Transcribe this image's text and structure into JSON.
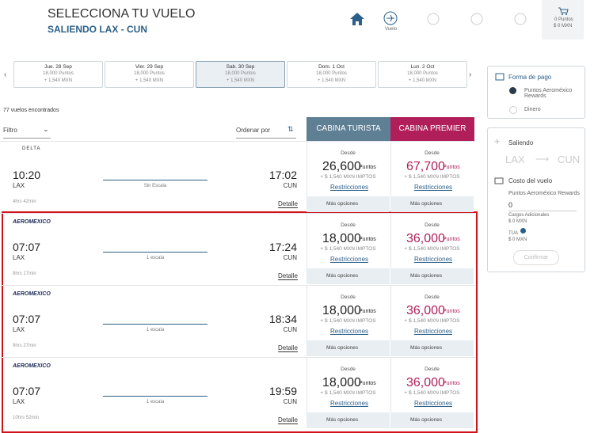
{
  "header": {
    "title": "SELECCIONA TU VUELO",
    "subtitle": "SALIENDO LAX - CUN"
  },
  "nav": {
    "flight_label": "Vuelo"
  },
  "cart": {
    "points": "0 Puntos",
    "amount": "$ 0 MXN"
  },
  "dates": [
    {
      "day": "Jue. 28 Sep",
      "points": "18,000 Puntos",
      "taxes": "+ 1,540 MXN"
    },
    {
      "day": "Vier. 29 Sep",
      "points": "18,000 Puntos",
      "taxes": "+ 1,540 MXN"
    },
    {
      "day": "Sab. 30 Sep",
      "points": "18,000 Puntos",
      "taxes": "+ 1,540 MXN"
    },
    {
      "day": "Dom. 1 Oct",
      "points": "18,000 Puntos",
      "taxes": "+ 1,540 MXN"
    },
    {
      "day": "Lun. 2 Oct",
      "points": "18,000 Puntos",
      "taxes": "+ 1,540 MXN"
    }
  ],
  "results": {
    "count": "77 vuelos encontrados",
    "filter": "Filtro",
    "sort": "Ordenar por"
  },
  "cabins": [
    "CABINA TURISTA",
    "CABINA PREMIER"
  ],
  "flights": [
    {
      "airline": "DELTA",
      "depart": "10:20",
      "origin": "LAX",
      "stops": "Sin Escala",
      "arrive": "17:02",
      "destination": "CUN",
      "duration": "4hrs 42min",
      "detail": "Detalle",
      "fares": [
        {
          "from": "Desde",
          "price": "26,600",
          "unit": "Puntos",
          "taxes": "+ $ 1,540 MXN IMPTOS",
          "restrictions": "Restricciones",
          "more": "Más opciones"
        },
        {
          "from": "Desde",
          "price": "67,700",
          "unit": "Puntos",
          "taxes": "+ $ 1,540 MXN IMPTOS",
          "restrictions": "Restricciones",
          "more": "Más opciones"
        }
      ]
    },
    {
      "airline": "AEROMEXICO",
      "depart": "07:07",
      "origin": "LAX",
      "stops": "1 escala",
      "arrive": "17:24",
      "destination": "CUN",
      "duration": "8hrs 17min",
      "detail": "Detalle",
      "fares": [
        {
          "from": "Desde",
          "price": "18,000",
          "unit": "Puntos",
          "taxes": "+ $ 1,540 MXN IMPTOS",
          "restrictions": "Restricciones",
          "more": "Más opciones"
        },
        {
          "from": "Desde",
          "price": "36,000",
          "unit": "Puntos",
          "taxes": "+ $ 1,540 MXN IMPTOS",
          "restrictions": "Restricciones",
          "more": "Más opciones"
        }
      ]
    },
    {
      "airline": "AEROMEXICO",
      "depart": "07:07",
      "origin": "LAX",
      "stops": "1 escala",
      "arrive": "18:34",
      "destination": "CUN",
      "duration": "9hrs 27min",
      "detail": "Detalle",
      "fares": [
        {
          "from": "Desde",
          "price": "18,000",
          "unit": "Puntos",
          "taxes": "+ $ 1,540 MXN IMPTOS",
          "restrictions": "Restricciones",
          "more": "Más opciones"
        },
        {
          "from": "Desde",
          "price": "36,000",
          "unit": "Puntos",
          "taxes": "+ $ 1,540 MXN IMPTOS",
          "restrictions": "Restricciones",
          "more": "Más opciones"
        }
      ]
    },
    {
      "airline": "AEROMEXICO",
      "depart": "07:07",
      "origin": "LAX",
      "stops": "1 escala",
      "arrive": "19:59",
      "destination": "CUN",
      "duration": "10hrs 52min",
      "detail": "Detalle",
      "fares": [
        {
          "from": "Desde",
          "price": "18,000",
          "unit": "Puntos",
          "taxes": "+ $ 1,540 MXN IMPTOS",
          "restrictions": "Restricciones",
          "more": "Más opciones"
        },
        {
          "from": "Desde",
          "price": "36,000",
          "unit": "Puntos",
          "taxes": "+ $ 1,540 MXN IMPTOS",
          "restrictions": "Restricciones",
          "more": "Más opciones"
        }
      ]
    }
  ],
  "payment": {
    "title": "Forma de pago",
    "options": [
      "Puntos Aeroméxico Rewards",
      "Dinero"
    ]
  },
  "summary": {
    "departing": "Saliendo",
    "origin": "LAX",
    "destination": "CUN",
    "cost_title": "Costo del vuelo",
    "points_label": "Puntos Aeroméxico Rewards",
    "points_value": "0",
    "charges_label": "Cargos Adicionales",
    "charges_value": "$ 0 MXN",
    "tua_label": "TUA",
    "tua_value": "$ 0 MXN",
    "confirm": "Confirmar"
  }
}
